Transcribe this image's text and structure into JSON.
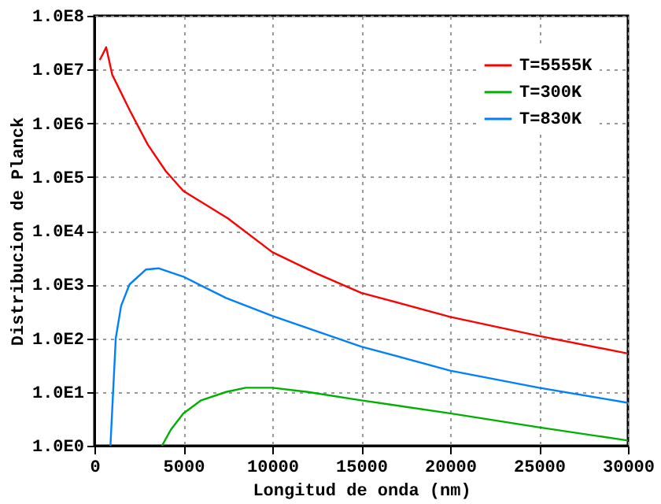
{
  "chart_data": {
    "type": "line",
    "xlabel": "Longitud de onda (nm)",
    "ylabel": "Distribucion de Planck",
    "log": "y",
    "xlim": [
      0,
      30000
    ],
    "xticks": [
      0,
      5000,
      10000,
      15000,
      20000,
      25000,
      30000
    ],
    "ylim": [
      1,
      100000000
    ],
    "yticks": [
      {
        "value": 1,
        "label": "1.0E0"
      },
      {
        "value": 10,
        "label": "1.0E1"
      },
      {
        "value": 100,
        "label": "1.0E2"
      },
      {
        "value": 1000,
        "label": "1.0E3"
      },
      {
        "value": 10000,
        "label": "1.0E4"
      },
      {
        "value": 100000,
        "label": "1.0E5"
      },
      {
        "value": 1000000,
        "label": "1.0E6"
      },
      {
        "value": 10000000,
        "label": "1.0E7"
      },
      {
        "value": 100000000,
        "label": "1.0E8"
      }
    ],
    "grid": true,
    "legend": "top right",
    "line_style": "solid",
    "marker": "none",
    "series": [
      {
        "name": "T=5555K",
        "color": "#ff0000",
        "x": [
          300,
          660,
          1000,
          2000,
          3000,
          4000,
          5000,
          7500,
          10000,
          12500,
          15000,
          20000,
          25000,
          30000
        ],
        "values": [
          15000000,
          26000000,
          8000000,
          1700000,
          400000,
          130000,
          55000,
          17000,
          4000,
          1600,
          700,
          250,
          110,
          52
        ]
      },
      {
        "name": "T=300K",
        "color": "#00b000",
        "x": [
          3800,
          4300,
          5000,
          6000,
          7400,
          8500,
          10000,
          12000,
          15000,
          20000,
          25000,
          30000
        ],
        "values": [
          1,
          2,
          4,
          7,
          10,
          12,
          12,
          10,
          7,
          4,
          2.2,
          1.25
        ]
      },
      {
        "name": "T=830K",
        "color": "#0080ff",
        "x": [
          900,
          1200,
          1500,
          1970,
          2900,
          3600,
          5000,
          7400,
          10000,
          15000,
          20000,
          25000,
          30000
        ],
        "values": [
          1,
          100,
          400,
          1000,
          1900,
          2000,
          1400,
          560,
          260,
          70,
          25,
          12,
          6.3
        ]
      }
    ]
  }
}
